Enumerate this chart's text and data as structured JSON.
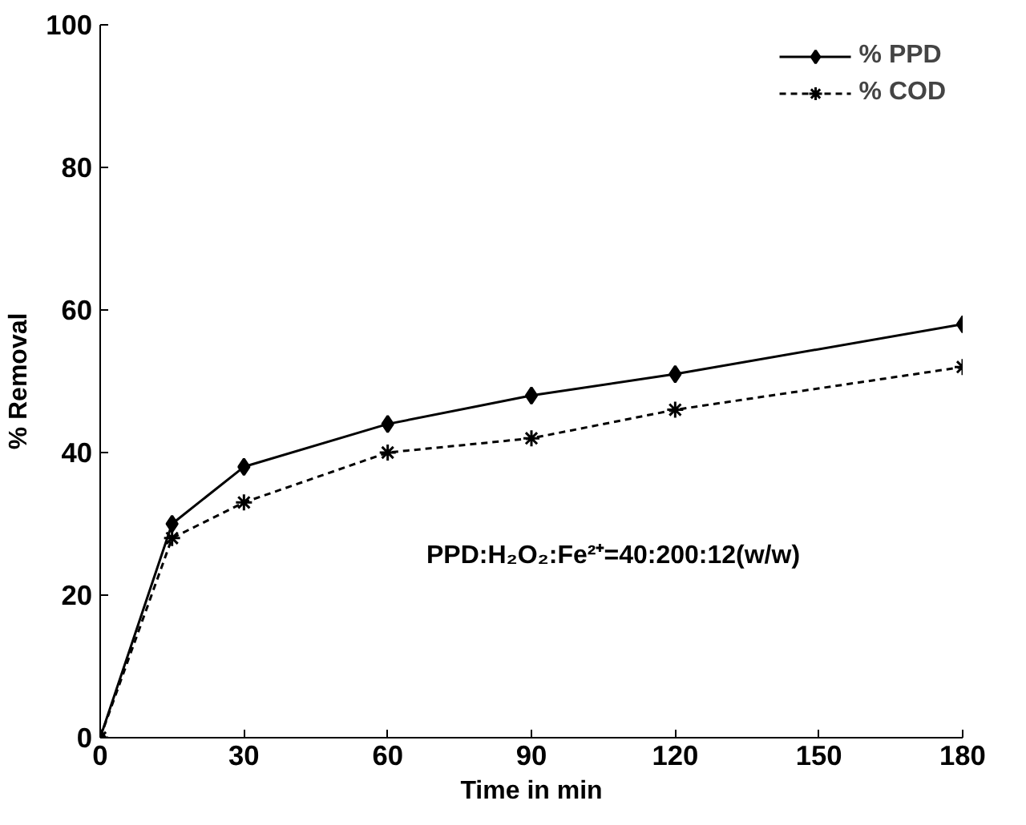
{
  "chart_data": {
    "type": "line",
    "xlabel": "Time in min",
    "ylabel": "% Removal",
    "x": [
      0,
      15,
      30,
      60,
      90,
      120,
      180
    ],
    "series": [
      {
        "name": "% PPD",
        "color": "#000000",
        "values": [
          0,
          30,
          38,
          44,
          48,
          51,
          58
        ],
        "marker": "diamond",
        "line_style": "solid"
      },
      {
        "name": "% COD",
        "color": "#000000",
        "values": [
          0,
          28,
          33,
          40,
          42,
          46,
          52
        ],
        "marker": "cross",
        "line_style": "dashed"
      }
    ],
    "xlim": [
      0,
      180
    ],
    "xticks": [
      0,
      30,
      60,
      90,
      120,
      150,
      180
    ],
    "ylim": [
      0,
      100
    ],
    "yticks": [
      0,
      20,
      40,
      60,
      80,
      100
    ],
    "annotations": [
      "PPD:H₂O₂:Fe²⁺=40:200:12(w/w)"
    ],
    "grid": false,
    "legend": "top right"
  }
}
